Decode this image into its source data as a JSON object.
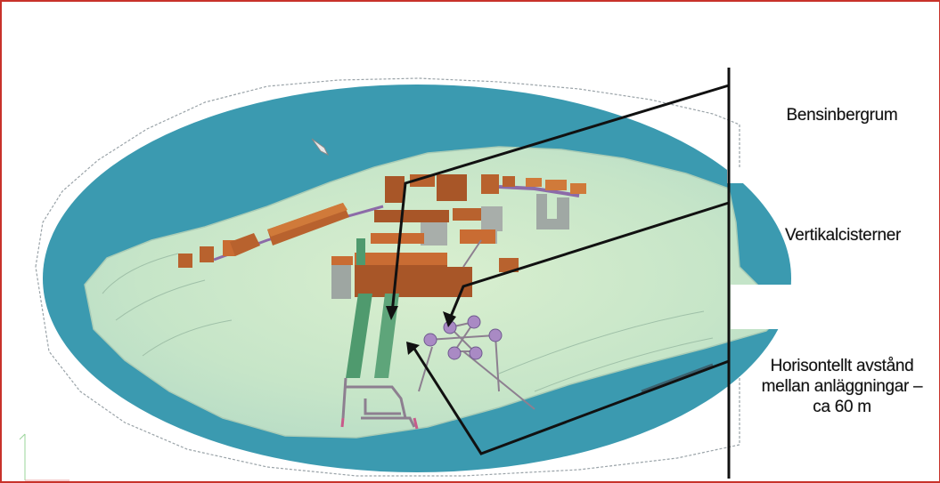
{
  "labels": {
    "bensinbergrum": "Bensinbergrum",
    "vertikalcisterner": "Vertikalcisterner",
    "horisontellt": "Horisontellt avstånd mellan anläggningar – ca 60 m"
  },
  "colors": {
    "water": "#3b9ab0",
    "island": "#cfe8cc",
    "building": "#b8622e",
    "building_top": "#d07a3a",
    "tunnel_green": "#4f9a6e",
    "tank": "#a98ac4",
    "pipe": "#8c4b8c",
    "arrow": "#111111",
    "frame": "#c8322a"
  }
}
